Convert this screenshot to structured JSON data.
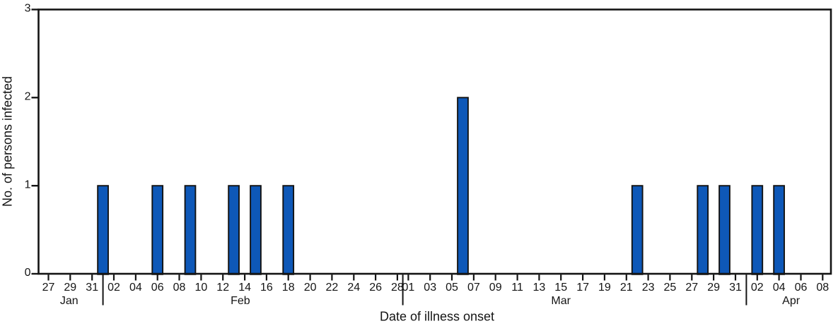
{
  "chart_data": {
    "type": "bar",
    "subtype": "epidemic-curve-histogram",
    "xlabel": "Date of illness onset",
    "ylabel": "No. of persons infected",
    "ylim": [
      0,
      3
    ],
    "yticks": [
      0,
      1,
      2,
      3
    ],
    "ytick_labels": [
      "0",
      "1",
      "2",
      "3"
    ],
    "x_unit": "day",
    "x_tick_step_days": 2,
    "x_range": {
      "start": "Jan 27",
      "end": "Apr 08"
    },
    "grid": false,
    "legend": "none",
    "bar_color": "#0e58b8",
    "bar_outline_color": "#121212",
    "axis_color": "#141414",
    "months": [
      {
        "label": "Jan",
        "label_day": 1.9
      },
      {
        "label": "Feb",
        "label_day": 17.6
      },
      {
        "label": "Mar",
        "label_day": 47.0
      },
      {
        "label": "Apr",
        "label_day": 68.1
      }
    ],
    "month_separators_day": [
      5,
      32.5,
      64
    ],
    "xticks": [
      {
        "label": "27",
        "day": 0
      },
      {
        "label": "29",
        "day": 2
      },
      {
        "label": "31",
        "day": 4
      },
      {
        "label": "02",
        "day": 6
      },
      {
        "label": "04",
        "day": 8
      },
      {
        "label": "06",
        "day": 10
      },
      {
        "label": "08",
        "day": 12
      },
      {
        "label": "10",
        "day": 14
      },
      {
        "label": "12",
        "day": 16
      },
      {
        "label": "14",
        "day": 18
      },
      {
        "label": "16",
        "day": 20
      },
      {
        "label": "18",
        "day": 22
      },
      {
        "label": "20",
        "day": 24
      },
      {
        "label": "22",
        "day": 26
      },
      {
        "label": "24",
        "day": 28
      },
      {
        "label": "26",
        "day": 30
      },
      {
        "label": "28",
        "day": 32
      },
      {
        "label": "01",
        "day": 33
      },
      {
        "label": "03",
        "day": 35
      },
      {
        "label": "05",
        "day": 37
      },
      {
        "label": "07",
        "day": 39
      },
      {
        "label": "09",
        "day": 41
      },
      {
        "label": "11",
        "day": 43
      },
      {
        "label": "13",
        "day": 45
      },
      {
        "label": "15",
        "day": 47
      },
      {
        "label": "17",
        "day": 49
      },
      {
        "label": "19",
        "day": 51
      },
      {
        "label": "21",
        "day": 53
      },
      {
        "label": "23",
        "day": 55
      },
      {
        "label": "25",
        "day": 57
      },
      {
        "label": "27",
        "day": 59
      },
      {
        "label": "29",
        "day": 61
      },
      {
        "label": "31",
        "day": 63
      },
      {
        "label": "02",
        "day": 65
      },
      {
        "label": "04",
        "day": 67
      },
      {
        "label": "06",
        "day": 69
      },
      {
        "label": "08",
        "day": 71
      }
    ],
    "cases": [
      {
        "date": "Feb 01",
        "day": 5,
        "count": 1
      },
      {
        "date": "Feb 06",
        "day": 10,
        "count": 1
      },
      {
        "date": "Feb 09",
        "day": 13,
        "count": 1
      },
      {
        "date": "Feb 13",
        "day": 17,
        "count": 1
      },
      {
        "date": "Feb 15",
        "day": 19,
        "count": 1
      },
      {
        "date": "Feb 18",
        "day": 22,
        "count": 1
      },
      {
        "date": "Mar 06",
        "day": 38,
        "count": 2
      },
      {
        "date": "Mar 22",
        "day": 54,
        "count": 1
      },
      {
        "date": "Mar 28",
        "day": 60,
        "count": 1
      },
      {
        "date": "Mar 30",
        "day": 62,
        "count": 1
      },
      {
        "date": "Apr 02",
        "day": 65,
        "count": 1
      },
      {
        "date": "Apr 04",
        "day": 67,
        "count": 1
      }
    ]
  }
}
